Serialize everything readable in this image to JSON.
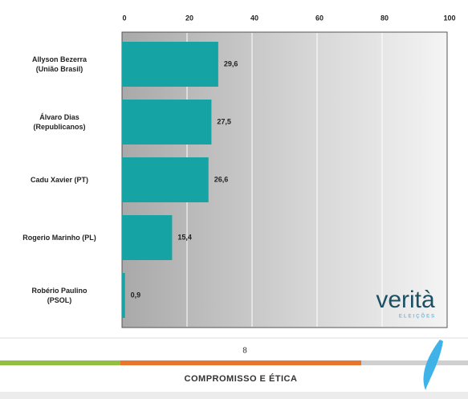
{
  "chart_data": {
    "type": "bar",
    "orientation": "horizontal",
    "categories": [
      "Allyson Bezerra\n(União Brasil)",
      "Álvaro Dias\n(Republicanos)",
      "Cadu Xavier (PT)",
      "Rogerio Marinho (PL)",
      "Robério Paulino\n(PSOL)"
    ],
    "values": [
      29.6,
      27.5,
      26.6,
      15.4,
      0.9
    ],
    "value_labels": [
      "29,6",
      "27,5",
      "26,6",
      "15,4",
      "0,9"
    ],
    "color": "#15a3a3",
    "xlim": [
      0,
      100
    ],
    "xticks": [
      0,
      20,
      40,
      60,
      80,
      100
    ],
    "grid": true
  },
  "logo": {
    "name": "verità",
    "subtitle": "ELEIÇÕES"
  },
  "footer": {
    "page": "8",
    "tagline": "COMPROMISSO E ÉTICA"
  }
}
